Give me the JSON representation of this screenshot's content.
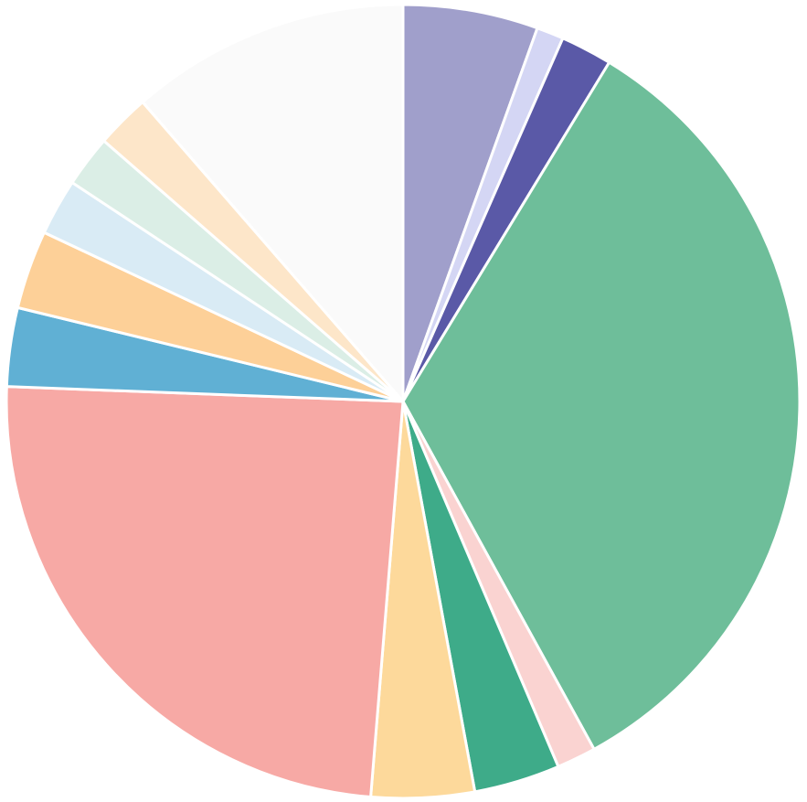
{
  "chart_data": {
    "type": "pie",
    "title": "",
    "start_angle": "12 o'clock",
    "direction": "clockwise",
    "legend": "none",
    "slices": [
      {
        "value": 5.5,
        "color": "#a09fcb"
      },
      {
        "value": 1.1,
        "color": "#d4d6f4"
      },
      {
        "value": 2.1,
        "color": "#5a59a7"
      },
      {
        "value": 33.3,
        "color": "#6ebe9a"
      },
      {
        "value": 1.6,
        "color": "#fad3d1"
      },
      {
        "value": 3.5,
        "color": "#3eab89"
      },
      {
        "value": 4.2,
        "color": "#fdd99b"
      },
      {
        "value": 24.3,
        "color": "#f7a9a5"
      },
      {
        "value": 3.2,
        "color": "#60b0d4"
      },
      {
        "value": 3.2,
        "color": "#fdd098"
      },
      {
        "value": 2.3,
        "color": "#d9ebf5"
      },
      {
        "value": 2.1,
        "color": "#dbeee6"
      },
      {
        "value": 2.2,
        "color": "#fde6c9"
      },
      {
        "value": 11.4,
        "color": "#fafafa"
      }
    ]
  }
}
